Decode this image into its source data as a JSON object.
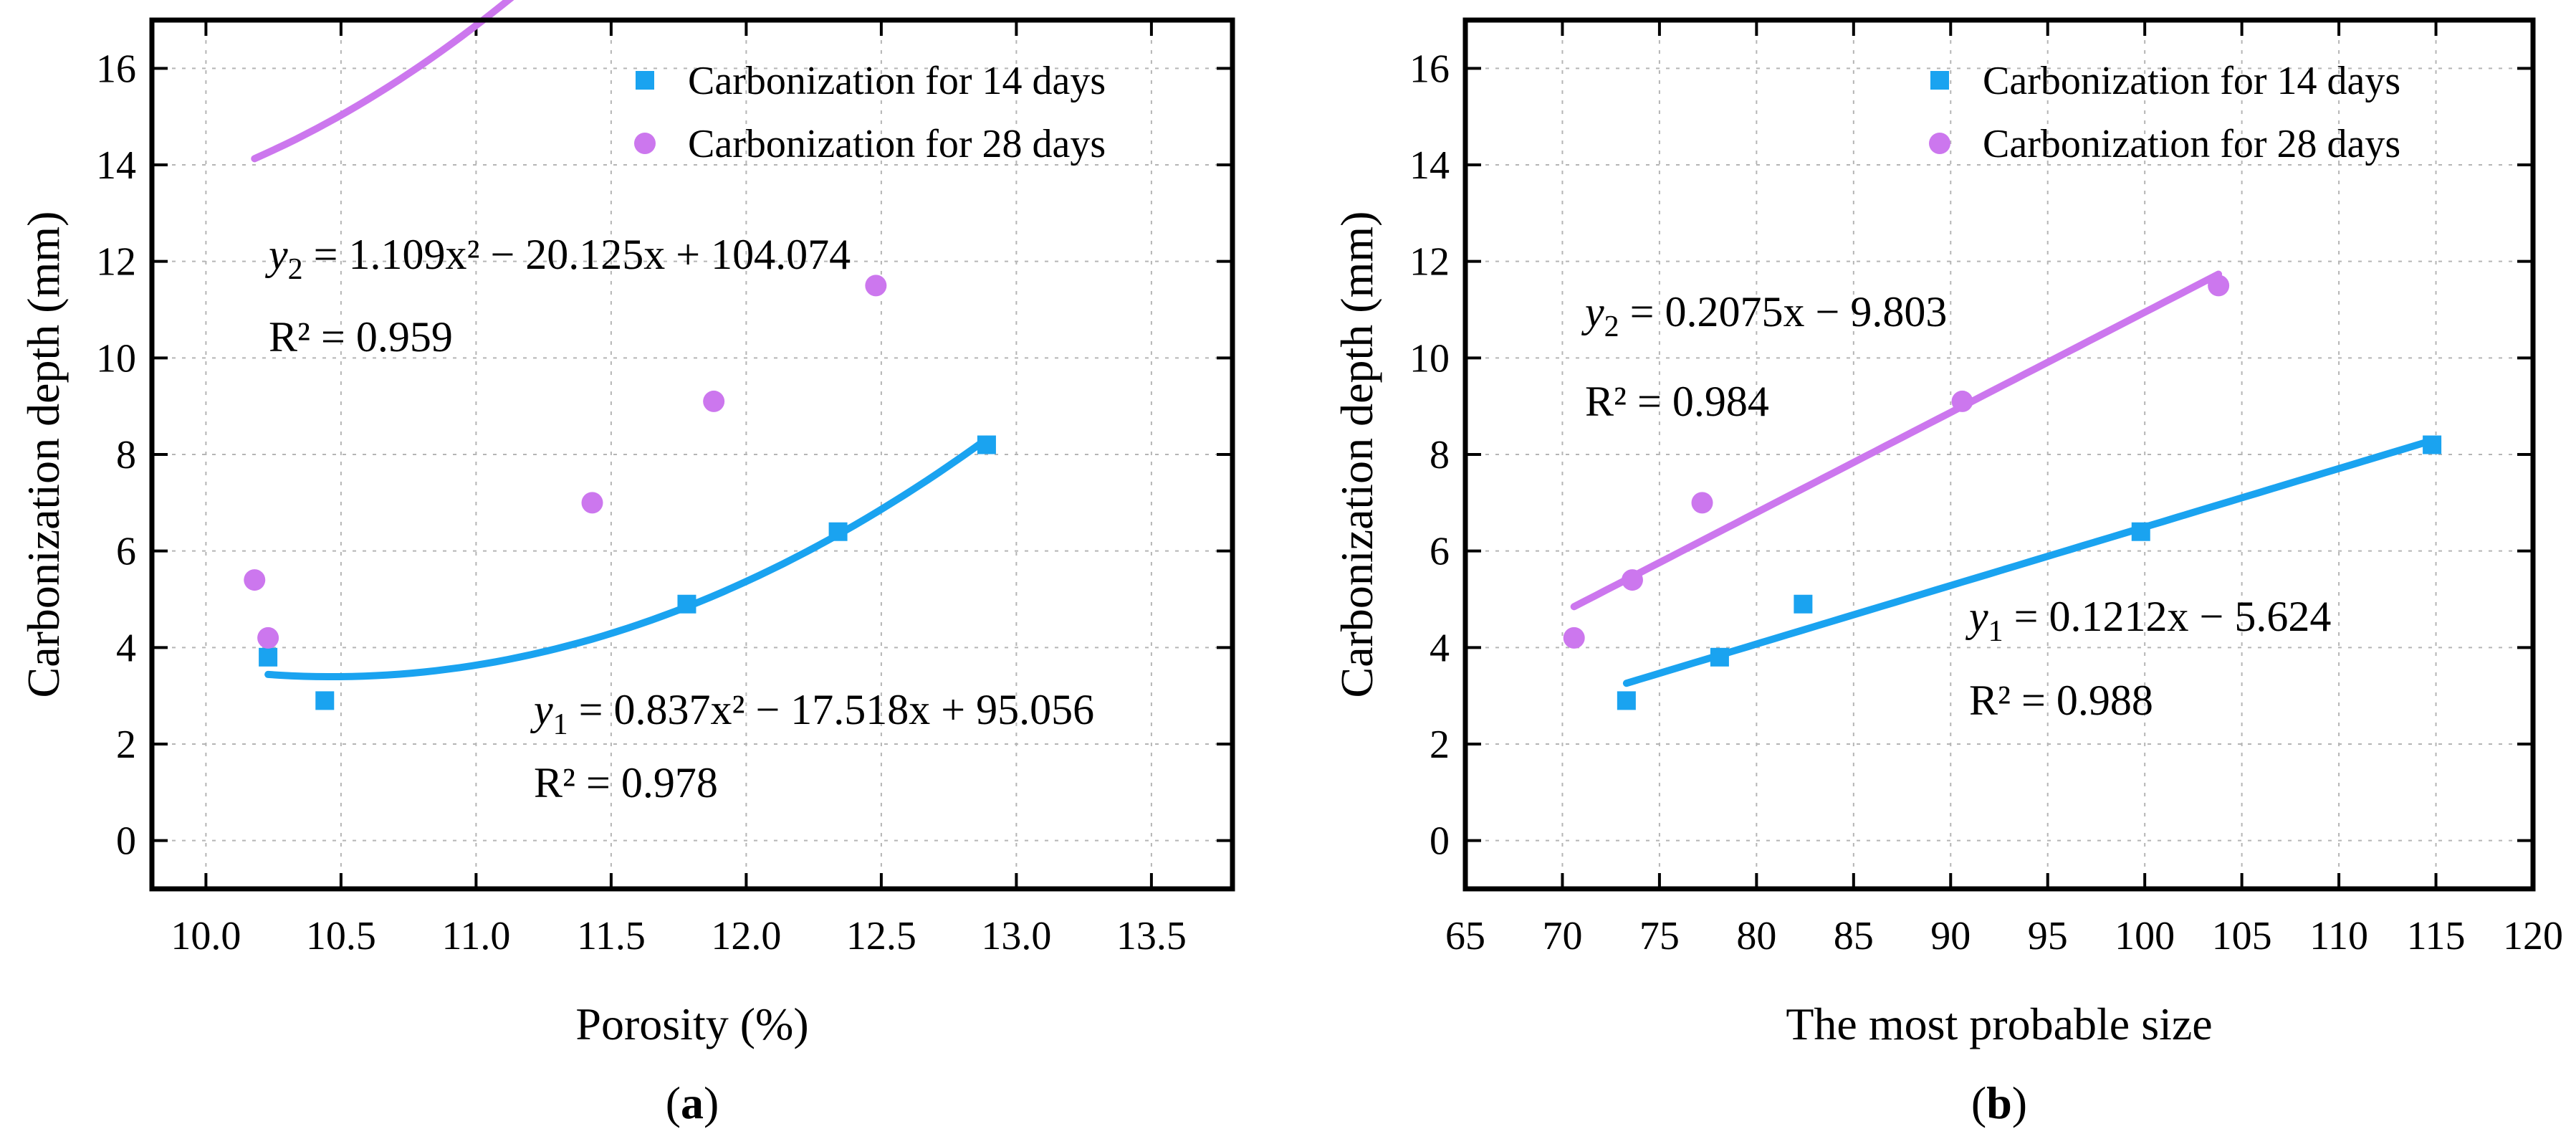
{
  "chart_data": [
    {
      "type": "scatter",
      "panel": "(a)",
      "panel_letter": "a",
      "xlabel": "Porosity (%)",
      "ylabel": "Carbonization depth (mm)",
      "xlim": [
        9.8,
        13.8
      ],
      "ylim": [
        -1,
        17
      ],
      "xticks": [
        "10.0",
        "10.5",
        "11.0",
        "11.5",
        "12.0",
        "12.5",
        "13.0",
        "13.5"
      ],
      "yticks": [
        "0",
        "2",
        "4",
        "6",
        "8",
        "10",
        "12",
        "14",
        "16"
      ],
      "grid": true,
      "legend_position": "top-right",
      "series": [
        {
          "name": "Carbonization for 14 days",
          "marker": "square",
          "color": "#1aa3f0",
          "points": [
            [
              10.23,
              3.8
            ],
            [
              10.44,
              2.9
            ],
            [
              11.78,
              4.9
            ],
            [
              12.34,
              6.4
            ],
            [
              12.89,
              8.2
            ]
          ],
          "fit": {
            "kind": "quadratic",
            "a": 0.837,
            "b": -17.518,
            "c": 95.056,
            "x_range": [
              10.23,
              12.89
            ]
          },
          "equation": {
            "lhs": "y",
            "sub": "1",
            "rhs": " = 0.837x² − 17.518x + 95.056"
          },
          "r2": {
            "label": "R² = 0.978"
          }
        },
        {
          "name": "Carbonization for 28 days",
          "marker": "circle",
          "color": "#cc77ee",
          "points": [
            [
              10.18,
              5.4
            ],
            [
              10.23,
              4.2
            ],
            [
              11.43,
              7.0
            ],
            [
              11.88,
              9.1
            ],
            [
              12.48,
              11.5
            ]
          ],
          "fit": {
            "kind": "quadratic",
            "a": 1.109,
            "b": -20.125,
            "c": 104.074,
            "x_range": [
              10.18,
              12.48
            ]
          },
          "equation": {
            "lhs": "y",
            "sub": "2",
            "rhs": " = 1.109x² − 20.125x + 104.074"
          },
          "r2": {
            "label": "R² = 0.959"
          }
        }
      ]
    },
    {
      "type": "scatter",
      "panel": "(b)",
      "panel_letter": "b",
      "xlabel": "The most probable size",
      "ylabel": "Carbonization depth (mm)",
      "xlim": [
        65,
        120
      ],
      "ylim": [
        -1,
        17
      ],
      "xticks": [
        "65",
        "70",
        "75",
        "80",
        "85",
        "90",
        "95",
        "100",
        "105",
        "110",
        "115",
        "120"
      ],
      "yticks": [
        "0",
        "2",
        "4",
        "6",
        "8",
        "10",
        "12",
        "14",
        "16"
      ],
      "grid": true,
      "legend_position": "top-right",
      "series": [
        {
          "name": "Carbonization for 14 days",
          "marker": "square",
          "color": "#1aa3f0",
          "points": [
            [
              73.3,
              2.9
            ],
            [
              78.1,
              3.8
            ],
            [
              82.4,
              4.9
            ],
            [
              99.8,
              6.4
            ],
            [
              114.8,
              8.2
            ]
          ],
          "fit": {
            "kind": "linear",
            "a": 0.1212,
            "b": -5.624,
            "x_range": [
              73.3,
              114.8
            ]
          },
          "equation": {
            "lhs": "y",
            "sub": "1",
            "rhs": " = 0.1212x − 5.624"
          },
          "r2": {
            "label": "R² = 0.988"
          }
        },
        {
          "name": "Carbonization for 28 days",
          "marker": "circle",
          "color": "#cc77ee",
          "points": [
            [
              70.6,
              4.2
            ],
            [
              73.6,
              5.4
            ],
            [
              77.2,
              7.0
            ],
            [
              90.6,
              9.1
            ],
            [
              103.8,
              11.5
            ]
          ],
          "fit": {
            "kind": "linear",
            "a": 0.2075,
            "b": -9.803,
            "x_range": [
              70.6,
              103.8
            ]
          },
          "equation": {
            "lhs": "y",
            "sub": "2",
            "rhs": " = 0.2075x − 9.803"
          },
          "r2": {
            "label": "R² = 0.984"
          }
        }
      ]
    }
  ]
}
